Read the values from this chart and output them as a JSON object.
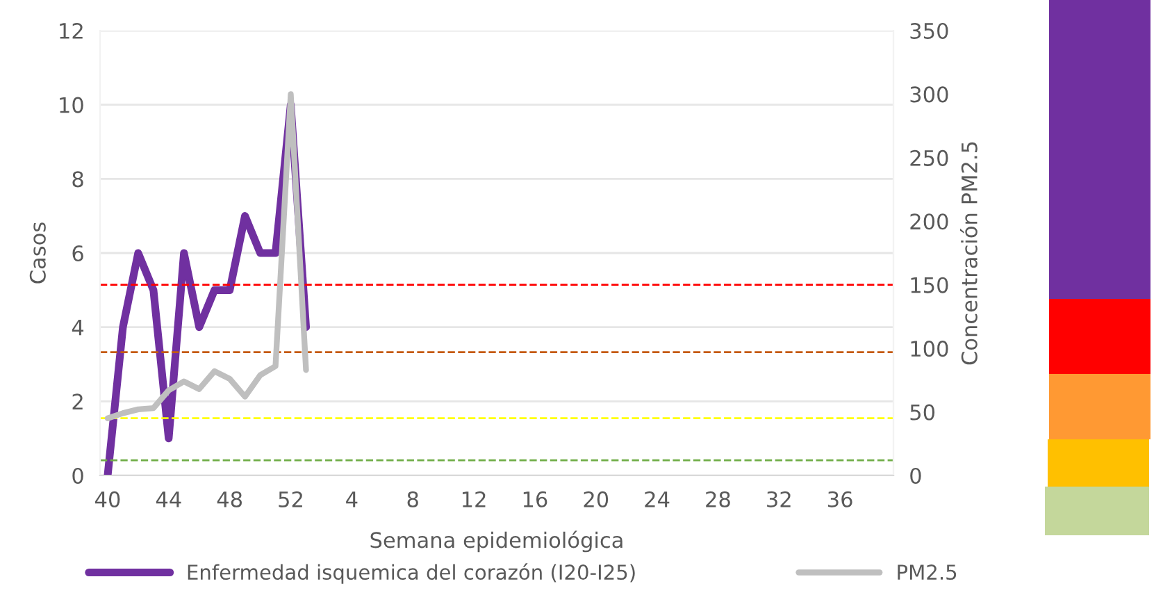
{
  "chart_data": {
    "type": "line",
    "xlabel": "Semana epidemiológica",
    "ylabel": "Casos",
    "y2label": "Concentración PM2.5",
    "categories": [
      "40",
      null,
      null,
      null,
      "44",
      null,
      null,
      null,
      "48",
      null,
      null,
      null,
      "52",
      null,
      null,
      null,
      "4",
      null,
      null,
      null,
      "8",
      null,
      null,
      null,
      "12",
      null,
      null,
      null,
      "16",
      null,
      null,
      null,
      "20",
      null,
      null,
      null,
      "24",
      null,
      null,
      null,
      "28",
      null,
      null,
      null,
      "32",
      null,
      null,
      null,
      "36",
      null,
      null,
      null
    ],
    "series": [
      {
        "name": "Enfermedad isquemica del corazón (I20-I25)",
        "color": "#7030a0",
        "values": [
          0,
          4,
          6,
          5,
          1,
          6,
          4,
          5,
          5,
          7,
          6,
          6,
          10,
          4,
          null,
          null,
          null,
          null,
          null,
          null,
          null,
          null,
          null,
          null,
          null,
          null,
          null,
          null,
          null,
          null,
          null,
          null,
          null,
          null,
          null,
          null,
          null,
          null,
          null,
          null,
          null,
          null,
          null,
          null,
          null,
          null,
          null,
          null,
          null,
          null,
          null,
          null
        ]
      },
      {
        "name": "PM2.5",
        "color": "#bfbfbf",
        "axis": "y2",
        "values": [
          45,
          49,
          52,
          53,
          67,
          74,
          68,
          82,
          76,
          62,
          79,
          86,
          300,
          83,
          null,
          null,
          null,
          null,
          null,
          null,
          null,
          null,
          null,
          null,
          null,
          null,
          null,
          null,
          null,
          null,
          null,
          null,
          null,
          null,
          null,
          null,
          null,
          null,
          null,
          null,
          null,
          null,
          null,
          null,
          null,
          null,
          null,
          null,
          null,
          null,
          null,
          null
        ]
      }
    ],
    "ylim": [
      0,
      12
    ],
    "yticks": [
      0,
      2,
      4,
      6,
      8,
      10,
      12
    ],
    "y2lim": [
      0,
      350
    ],
    "y2ticks": [
      0,
      50,
      100,
      150,
      200,
      250,
      300,
      350
    ],
    "ref_lines": [
      {
        "axis": "y2",
        "value": 150,
        "color": "#ff0000",
        "line_style": "dashed"
      },
      {
        "axis": "y2",
        "value": 97,
        "color": "#c55a11",
        "line_style": "dashed"
      },
      {
        "axis": "y2",
        "value": 45,
        "color": "#ffff00",
        "line_style": "dashed"
      },
      {
        "axis": "y2",
        "value": 12,
        "color": "#70ad47",
        "line_style": "dashed"
      }
    ],
    "grid": "y",
    "legend": "bottom",
    "marker": "none",
    "line_style": "solid"
  }
}
